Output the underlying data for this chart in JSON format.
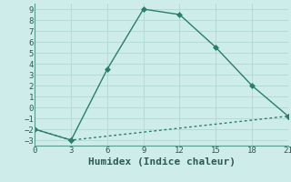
{
  "xlabel": "Humidex (Indice chaleur)",
  "line1_x": [
    0,
    3,
    6,
    9,
    12,
    15,
    18,
    21
  ],
  "line1_y": [
    -2,
    -3,
    3.5,
    9,
    8.5,
    5.5,
    2,
    -0.8
  ],
  "line2_x": [
    0,
    3,
    21
  ],
  "line2_y": [
    -2,
    -3,
    -0.8
  ],
  "line_color": "#2a7d6f",
  "bg_color": "#ceecea",
  "plot_bg": "#ceecea",
  "grid_color": "#b2d8d4",
  "xlim": [
    0,
    21
  ],
  "ylim": [
    -3.5,
    9.5
  ],
  "xticks": [
    0,
    3,
    6,
    9,
    12,
    15,
    18,
    21
  ],
  "yticks": [
    -3,
    -2,
    -1,
    0,
    1,
    2,
    3,
    4,
    5,
    6,
    7,
    8,
    9
  ],
  "markersize": 3,
  "linewidth": 1.0,
  "tick_fontsize": 6.5,
  "label_fontsize": 8
}
